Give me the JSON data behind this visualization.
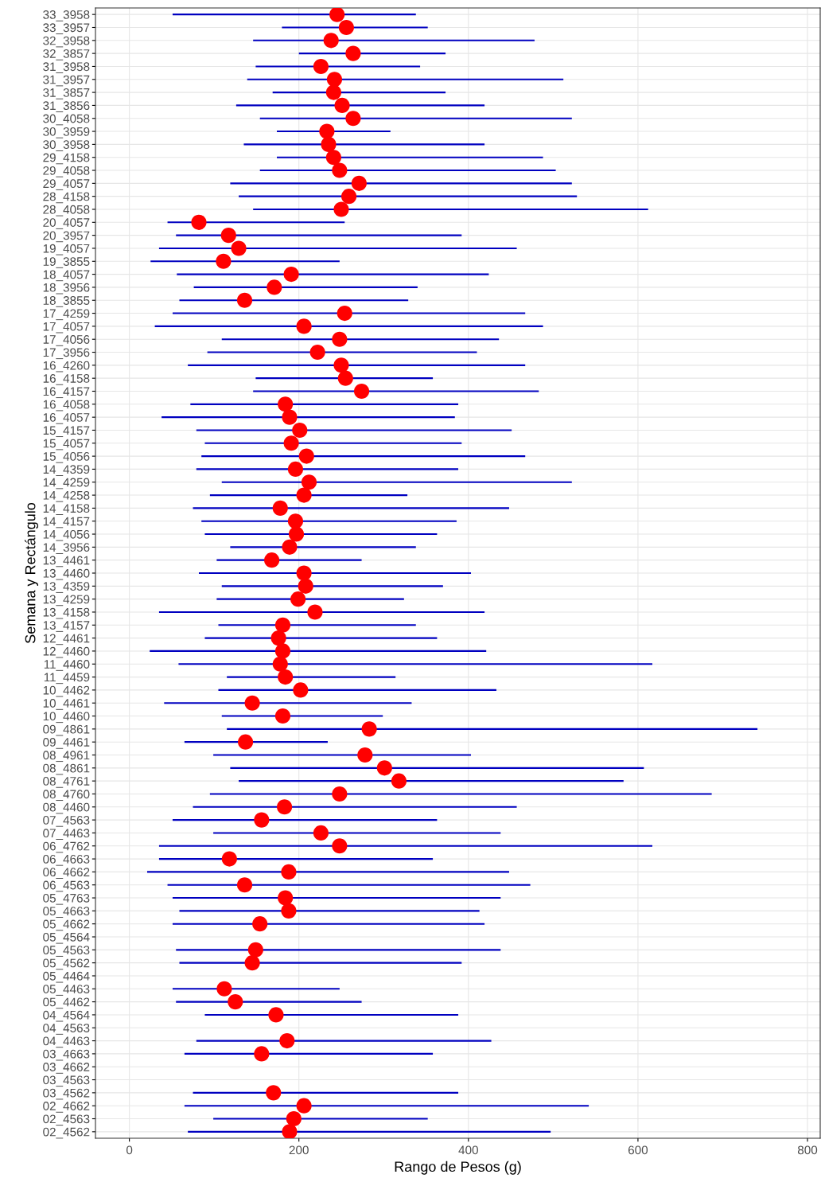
{
  "chart_data": {
    "type": "bar",
    "orientation": "horizontal",
    "xlabel": "Rango de Pesos (g)",
    "ylabel": "Semana y Rectángulo",
    "categories": [
      "33_3958",
      "33_3957",
      "32_3958",
      "32_3857",
      "31_3958",
      "31_3957",
      "31_3857",
      "31_3856",
      "30_4058",
      "30_3959",
      "30_3958",
      "29_4158",
      "29_4058",
      "29_4057",
      "28_4158",
      "28_4058",
      "20_4057",
      "20_3957",
      "19_4057",
      "19_3855",
      "18_4057",
      "18_3956",
      "18_3855",
      "17_4259",
      "17_4057",
      "17_4056",
      "17_3956",
      "16_4260",
      "16_4158",
      "16_4157",
      "16_4058",
      "16_4057",
      "15_4157",
      "15_4057",
      "15_4056",
      "14_4359",
      "14_4259",
      "14_4258",
      "14_4158",
      "14_4157",
      "14_4056",
      "14_3956",
      "13_4461",
      "13_4460",
      "13_4359",
      "13_4259",
      "13_4158",
      "13_4157",
      "12_4461",
      "12_4460",
      "11_4460",
      "11_4459",
      "10_4462",
      "10_4461",
      "10_4460",
      "09_4861",
      "09_4461",
      "08_4961",
      "08_4861",
      "08_4761",
      "08_4760",
      "08_4460",
      "07_4563",
      "07_4463",
      "06_4762",
      "06_4663",
      "06_4662",
      "06_4563",
      "05_4763",
      "05_4663",
      "05_4662",
      "05_4564",
      "05_4563",
      "05_4562",
      "05_4464",
      "05_4463",
      "05_4462",
      "04_4564",
      "04_4563",
      "04_4463",
      "03_4663",
      "03_4662",
      "03_4563",
      "03_4562",
      "02_4662",
      "02_4563",
      "02_4562"
    ],
    "series": [
      {
        "color": "#0000c0",
        "base": [
          51,
          180,
          146,
          200,
          149,
          139,
          169,
          126,
          154,
          174,
          135,
          174,
          154,
          119,
          129,
          146,
          45,
          55,
          35,
          25,
          56,
          76,
          59,
          51,
          30,
          109,
          92,
          69,
          149,
          146,
          72,
          38,
          79,
          89,
          85,
          79,
          109,
          95,
          75,
          85,
          89,
          119,
          103,
          82,
          109,
          103,
          35,
          105,
          89,
          24,
          58,
          115,
          105,
          41,
          109,
          115,
          65,
          99,
          119,
          129,
          95,
          75,
          51,
          99,
          35,
          35,
          21,
          45,
          51,
          59,
          51,
          null,
          55,
          59,
          null,
          51,
          55,
          89,
          null,
          79,
          65,
          null,
          null,
          75,
          65,
          99,
          69
        ],
        "values": [
          287,
          172,
          332,
          173,
          194,
          373,
          204,
          293,
          368,
          134,
          284,
          314,
          349,
          403,
          399,
          466,
          209,
          337,
          422,
          223,
          368,
          264,
          270,
          416,
          458,
          327,
          318,
          398,
          209,
          337,
          316,
          346,
          372,
          303,
          382,
          309,
          413,
          233,
          373,
          301,
          274,
          219,
          171,
          321,
          261,
          221,
          384,
          233,
          274,
          397,
          559,
          199,
          328,
          292,
          190,
          626,
          169,
          304,
          488,
          454,
          592,
          382,
          312,
          339,
          582,
          323,
          427,
          428,
          387,
          354,
          368,
          null,
          383,
          333,
          null,
          197,
          219,
          299,
          null,
          348,
          293,
          null,
          null,
          313,
          477,
          253,
          428
        ]
      },
      {
        "type": "scatter",
        "color": "#ff0000",
        "values": [
          245,
          256,
          238,
          264,
          226,
          242,
          241,
          251,
          264,
          233,
          235,
          241,
          248,
          271,
          259,
          250,
          82,
          117,
          129,
          111,
          191,
          171,
          136,
          254,
          206,
          248,
          222,
          250,
          255,
          274,
          184,
          189,
          201,
          191,
          209,
          196,
          212,
          206,
          178,
          196,
          197,
          189,
          168,
          206,
          208,
          199,
          219,
          181,
          176,
          181,
          178,
          184,
          202,
          145,
          181,
          283,
          137,
          278,
          301,
          318,
          248,
          183,
          156,
          226,
          248,
          118,
          188,
          136,
          184,
          188,
          154,
          null,
          149,
          145,
          null,
          112,
          125,
          173,
          null,
          186,
          156,
          null,
          null,
          170,
          206,
          194,
          189
        ]
      }
    ],
    "marker": "circle",
    "xlim": [
      -40,
      815
    ],
    "xticks": [
      0,
      200,
      400,
      600,
      800
    ],
    "grid": true
  }
}
